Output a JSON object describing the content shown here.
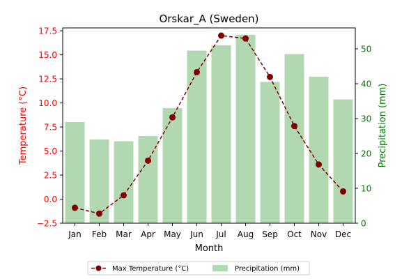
{
  "chart_data": {
    "type": "bar",
    "title": "Orskar_A (Sweden)",
    "xlabel": "Month",
    "categories": [
      "Jan",
      "Feb",
      "Mar",
      "Apr",
      "May",
      "Jun",
      "Jul",
      "Aug",
      "Sep",
      "Oct",
      "Nov",
      "Dec"
    ],
    "y_left": {
      "label": "Temperature (°C)",
      "range": [
        -2.5,
        17.8
      ],
      "ticks": [
        -2.5,
        0.0,
        2.5,
        5.0,
        7.5,
        10.0,
        12.5,
        15.0,
        17.5
      ],
      "tick_labels": [
        "−2.5",
        "0.0",
        "2.5",
        "5.0",
        "7.5",
        "10.0",
        "12.5",
        "15.0",
        "17.5"
      ],
      "color": "#ff0000"
    },
    "y_right": {
      "label": "Precipitation (mm)",
      "range": [
        0,
        56
      ],
      "ticks": [
        0,
        10,
        20,
        30,
        40,
        50
      ],
      "tick_labels": [
        "0",
        "10",
        "20",
        "30",
        "40",
        "50"
      ],
      "color": "#008000"
    },
    "series": [
      {
        "name": "Max Temperature (°C)",
        "kind": "line",
        "axis": "left",
        "color": "#800000",
        "values": [
          -0.9,
          -1.5,
          0.4,
          4.0,
          8.5,
          13.2,
          17.0,
          16.7,
          12.7,
          7.6,
          3.6,
          0.8
        ]
      },
      {
        "name": "Precipitation (mm)",
        "kind": "bar",
        "axis": "right",
        "color": "#b2d8b2",
        "values": [
          29,
          24,
          23.5,
          25,
          33,
          49.5,
          51,
          54,
          40.5,
          48.5,
          42,
          35.5
        ]
      }
    ],
    "legend_position": "bottom-center",
    "grid": false
  }
}
